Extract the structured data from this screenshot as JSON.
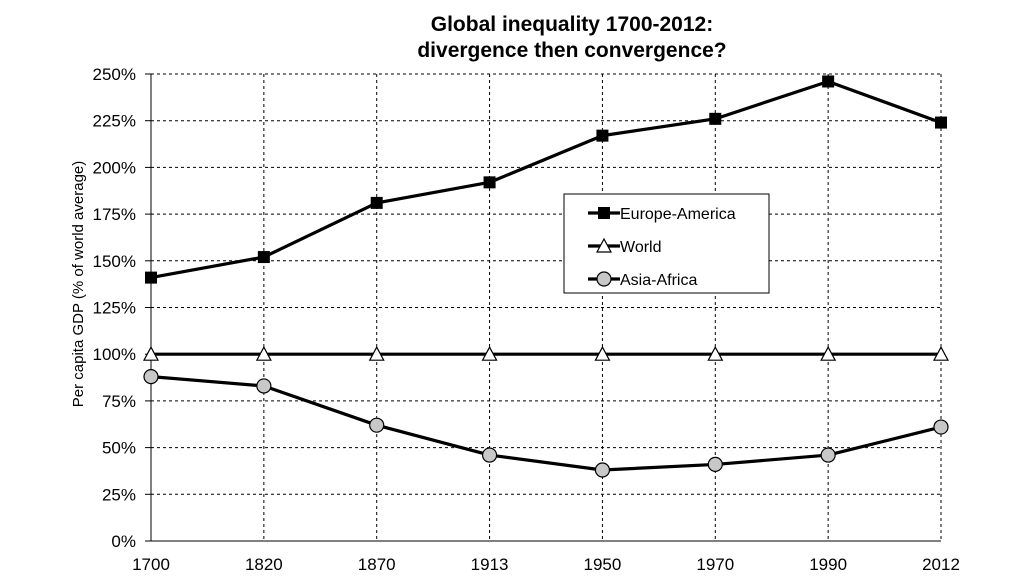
{
  "chart_data": {
    "type": "line",
    "title": [
      "Global inequality 1700-2012:",
      "divergence then convergence?"
    ],
    "ylabel": "Per capita GDP (% of world average)",
    "xlabel": "",
    "categories": [
      "1700",
      "1820",
      "1870",
      "1913",
      "1950",
      "1970",
      "1990",
      "2012"
    ],
    "ylim": [
      0,
      250
    ],
    "y_ticks": [
      "0%",
      "25%",
      "50%",
      "75%",
      "100%",
      "125%",
      "150%",
      "175%",
      "200%",
      "225%",
      "250%"
    ],
    "grid": "dashed vertical and horizontal",
    "legend_position": "center-right",
    "series": [
      {
        "name": "Europe-America",
        "marker": "square",
        "values": [
          141,
          152,
          181,
          192,
          217,
          226,
          246,
          224
        ]
      },
      {
        "name": "World",
        "marker": "triangle",
        "values": [
          100,
          100,
          100,
          100,
          100,
          100,
          100,
          100
        ]
      },
      {
        "name": "Asia-Africa",
        "marker": "circle",
        "values": [
          88,
          83,
          62,
          46,
          38,
          41,
          46,
          61
        ]
      }
    ]
  },
  "colors": {
    "line": "#000000",
    "marker_fill_circle": "#c8c8c8",
    "marker_fill_triangle": "#ffffff",
    "grid": "#000000"
  }
}
